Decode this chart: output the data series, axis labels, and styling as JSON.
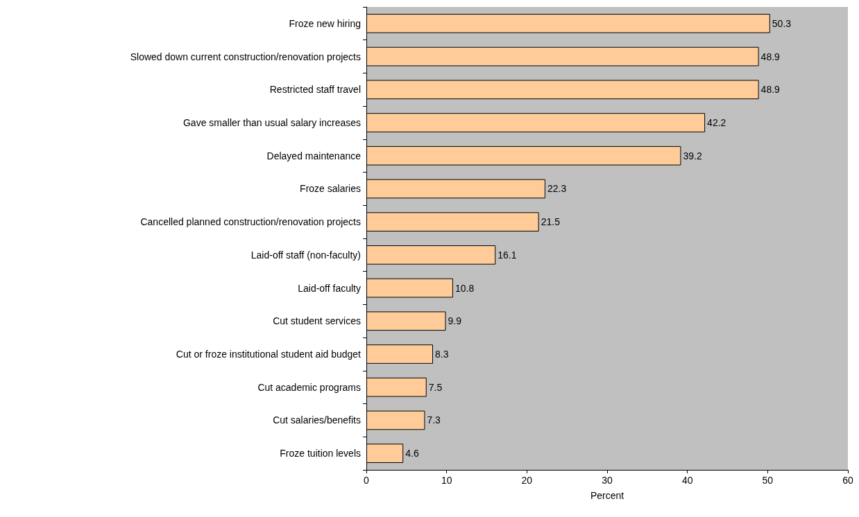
{
  "chart_data": {
    "type": "bar",
    "orientation": "horizontal",
    "xlabel": "Percent",
    "categories": [
      "Froze new hiring",
      "Slowed down current construction/renovation projects",
      "Restricted staff travel",
      "Gave smaller than usual salary increases",
      "Delayed maintenance",
      "Froze salaries",
      "Cancelled planned construction/renovation projects",
      "Laid-off staff (non-faculty)",
      "Laid-off faculty",
      "Cut student services",
      "Cut or froze institutional student aid budget",
      "Cut academic programs",
      "Cut salaries/benefits",
      "Froze tuition levels"
    ],
    "values": [
      50.3,
      48.9,
      48.9,
      42.2,
      39.2,
      22.3,
      21.5,
      16.1,
      10.8,
      9.9,
      8.3,
      7.5,
      7.3,
      4.6
    ],
    "color": "#ffcc99",
    "data_labels": true,
    "xlim": [
      0,
      60
    ],
    "xticks": [
      0,
      10,
      20,
      30,
      40,
      50,
      60
    ]
  }
}
